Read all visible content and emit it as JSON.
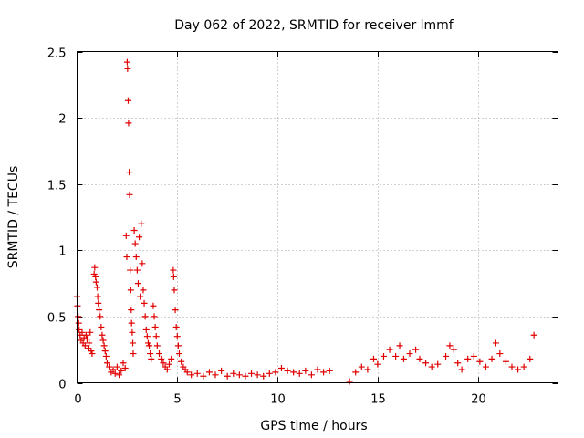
{
  "chart_data": {
    "type": "scatter",
    "title": "Day 062 of 2022, SRMTID for receiver lmmf",
    "xlabel": "GPS time / hours",
    "ylabel": "SRMTID / TECUs",
    "xlim": [
      0,
      24
    ],
    "ylim": [
      0,
      2.5
    ],
    "x_ticks": [
      0,
      5,
      10,
      15,
      20
    ],
    "x_tick_labels": [
      "0",
      "5",
      "10",
      "15",
      "20"
    ],
    "y_ticks": [
      0,
      0.5,
      1,
      1.5,
      2,
      2.5
    ],
    "y_tick_labels": [
      "0",
      "0.5",
      "1",
      "1.5",
      "2",
      "2.5"
    ],
    "grid": true,
    "marker": "+",
    "color": "#e00000",
    "series": [
      {
        "name": "SRMTID",
        "points": [
          [
            0.0,
            0.65
          ],
          [
            0.02,
            0.58
          ],
          [
            0.05,
            0.5
          ],
          [
            0.08,
            0.45
          ],
          [
            0.1,
            0.4
          ],
          [
            0.15,
            0.36
          ],
          [
            0.2,
            0.32
          ],
          [
            0.25,
            0.38
          ],
          [
            0.3,
            0.3
          ],
          [
            0.35,
            0.34
          ],
          [
            0.4,
            0.28
          ],
          [
            0.45,
            0.36
          ],
          [
            0.5,
            0.33
          ],
          [
            0.55,
            0.26
          ],
          [
            0.6,
            0.3
          ],
          [
            0.65,
            0.38
          ],
          [
            0.7,
            0.24
          ],
          [
            0.75,
            0.22
          ],
          [
            0.85,
            0.82
          ],
          [
            0.88,
            0.87
          ],
          [
            0.92,
            0.8
          ],
          [
            0.95,
            0.76
          ],
          [
            1.0,
            0.72
          ],
          [
            1.03,
            0.65
          ],
          [
            1.06,
            0.6
          ],
          [
            1.1,
            0.55
          ],
          [
            1.15,
            0.5
          ],
          [
            1.2,
            0.42
          ],
          [
            1.25,
            0.36
          ],
          [
            1.3,
            0.32
          ],
          [
            1.35,
            0.28
          ],
          [
            1.4,
            0.24
          ],
          [
            1.45,
            0.2
          ],
          [
            1.5,
            0.15
          ],
          [
            1.6,
            0.12
          ],
          [
            1.7,
            0.08
          ],
          [
            1.8,
            0.1
          ],
          [
            1.9,
            0.07
          ],
          [
            2.0,
            0.12
          ],
          [
            2.1,
            0.06
          ],
          [
            2.2,
            0.09
          ],
          [
            2.3,
            0.15
          ],
          [
            2.4,
            0.11
          ],
          [
            2.45,
            1.11
          ],
          [
            2.48,
            0.95
          ],
          [
            2.5,
            2.42
          ],
          [
            2.52,
            2.37
          ],
          [
            2.55,
            2.13
          ],
          [
            2.57,
            1.96
          ],
          [
            2.6,
            1.59
          ],
          [
            2.62,
            1.42
          ],
          [
            2.65,
            0.85
          ],
          [
            2.68,
            0.7
          ],
          [
            2.7,
            0.55
          ],
          [
            2.72,
            0.45
          ],
          [
            2.75,
            0.38
          ],
          [
            2.78,
            0.3
          ],
          [
            2.8,
            0.22
          ],
          [
            2.85,
            1.15
          ],
          [
            2.9,
            1.05
          ],
          [
            2.95,
            0.95
          ],
          [
            3.0,
            0.85
          ],
          [
            3.05,
            0.75
          ],
          [
            3.1,
            1.1
          ],
          [
            3.15,
            0.65
          ],
          [
            3.2,
            1.2
          ],
          [
            3.25,
            0.9
          ],
          [
            3.3,
            0.7
          ],
          [
            3.35,
            0.6
          ],
          [
            3.4,
            0.5
          ],
          [
            3.45,
            0.4
          ],
          [
            3.5,
            0.35
          ],
          [
            3.55,
            0.3
          ],
          [
            3.6,
            0.28
          ],
          [
            3.65,
            0.22
          ],
          [
            3.7,
            0.18
          ],
          [
            3.8,
            0.58
          ],
          [
            3.85,
            0.5
          ],
          [
            3.9,
            0.42
          ],
          [
            3.95,
            0.35
          ],
          [
            4.0,
            0.28
          ],
          [
            4.1,
            0.22
          ],
          [
            4.2,
            0.18
          ],
          [
            4.3,
            0.15
          ],
          [
            4.4,
            0.12
          ],
          [
            4.5,
            0.1
          ],
          [
            4.6,
            0.14
          ],
          [
            4.7,
            0.18
          ],
          [
            4.8,
            0.85
          ],
          [
            4.82,
            0.8
          ],
          [
            4.85,
            0.7
          ],
          [
            4.9,
            0.55
          ],
          [
            4.95,
            0.42
          ],
          [
            5.0,
            0.35
          ],
          [
            5.05,
            0.28
          ],
          [
            5.1,
            0.22
          ],
          [
            5.2,
            0.16
          ],
          [
            5.3,
            0.12
          ],
          [
            5.4,
            0.1
          ],
          [
            5.5,
            0.08
          ],
          [
            5.7,
            0.06
          ],
          [
            6.0,
            0.07
          ],
          [
            6.3,
            0.05
          ],
          [
            6.6,
            0.08
          ],
          [
            6.9,
            0.06
          ],
          [
            7.2,
            0.09
          ],
          [
            7.5,
            0.05
          ],
          [
            7.8,
            0.07
          ],
          [
            8.1,
            0.06
          ],
          [
            8.4,
            0.05
          ],
          [
            8.7,
            0.07
          ],
          [
            9.0,
            0.06
          ],
          [
            9.3,
            0.05
          ],
          [
            9.6,
            0.07
          ],
          [
            9.9,
            0.08
          ],
          [
            10.2,
            0.11
          ],
          [
            10.5,
            0.09
          ],
          [
            10.8,
            0.08
          ],
          [
            11.1,
            0.07
          ],
          [
            11.4,
            0.09
          ],
          [
            11.7,
            0.06
          ],
          [
            12.0,
            0.1
          ],
          [
            12.3,
            0.08
          ],
          [
            12.6,
            0.09
          ],
          [
            13.6,
            0.01
          ],
          [
            13.9,
            0.08
          ],
          [
            14.2,
            0.12
          ],
          [
            14.5,
            0.1
          ],
          [
            14.8,
            0.18
          ],
          [
            15.0,
            0.14
          ],
          [
            15.3,
            0.2
          ],
          [
            15.6,
            0.25
          ],
          [
            15.9,
            0.2
          ],
          [
            16.1,
            0.28
          ],
          [
            16.3,
            0.18
          ],
          [
            16.6,
            0.22
          ],
          [
            16.9,
            0.25
          ],
          [
            17.1,
            0.18
          ],
          [
            17.4,
            0.15
          ],
          [
            17.7,
            0.12
          ],
          [
            18.0,
            0.14
          ],
          [
            18.4,
            0.2
          ],
          [
            18.6,
            0.28
          ],
          [
            18.8,
            0.25
          ],
          [
            19.0,
            0.15
          ],
          [
            19.2,
            0.1
          ],
          [
            19.5,
            0.18
          ],
          [
            19.8,
            0.2
          ],
          [
            20.1,
            0.16
          ],
          [
            20.4,
            0.12
          ],
          [
            20.7,
            0.18
          ],
          [
            20.9,
            0.3
          ],
          [
            21.1,
            0.22
          ],
          [
            21.4,
            0.16
          ],
          [
            21.7,
            0.12
          ],
          [
            22.0,
            0.1
          ],
          [
            22.3,
            0.12
          ],
          [
            22.6,
            0.18
          ],
          [
            22.8,
            0.36
          ]
        ]
      }
    ]
  }
}
